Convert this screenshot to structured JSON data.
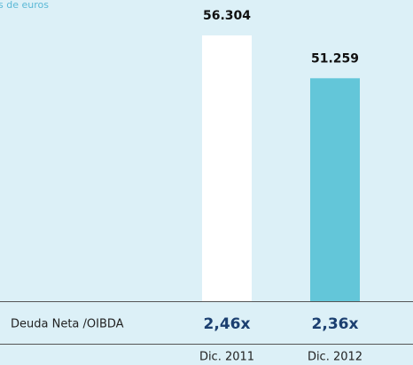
{
  "chart_data": {
    "type": "bar",
    "subtitle": "s de euros",
    "categories": [
      "Dic. 2011",
      "Dic. 2012"
    ],
    "values": [
      56304,
      51259
    ],
    "value_labels": [
      "56.304",
      "51.259"
    ],
    "colors": [
      "#ffffff",
      "#63c6d9"
    ],
    "ylim": [
      25000,
      57000
    ],
    "ratio": {
      "label": "Deuda Neta /OIBDA",
      "values": [
        2.46,
        2.36
      ],
      "value_labels": [
        "2,46x",
        "2,36x"
      ]
    }
  }
}
